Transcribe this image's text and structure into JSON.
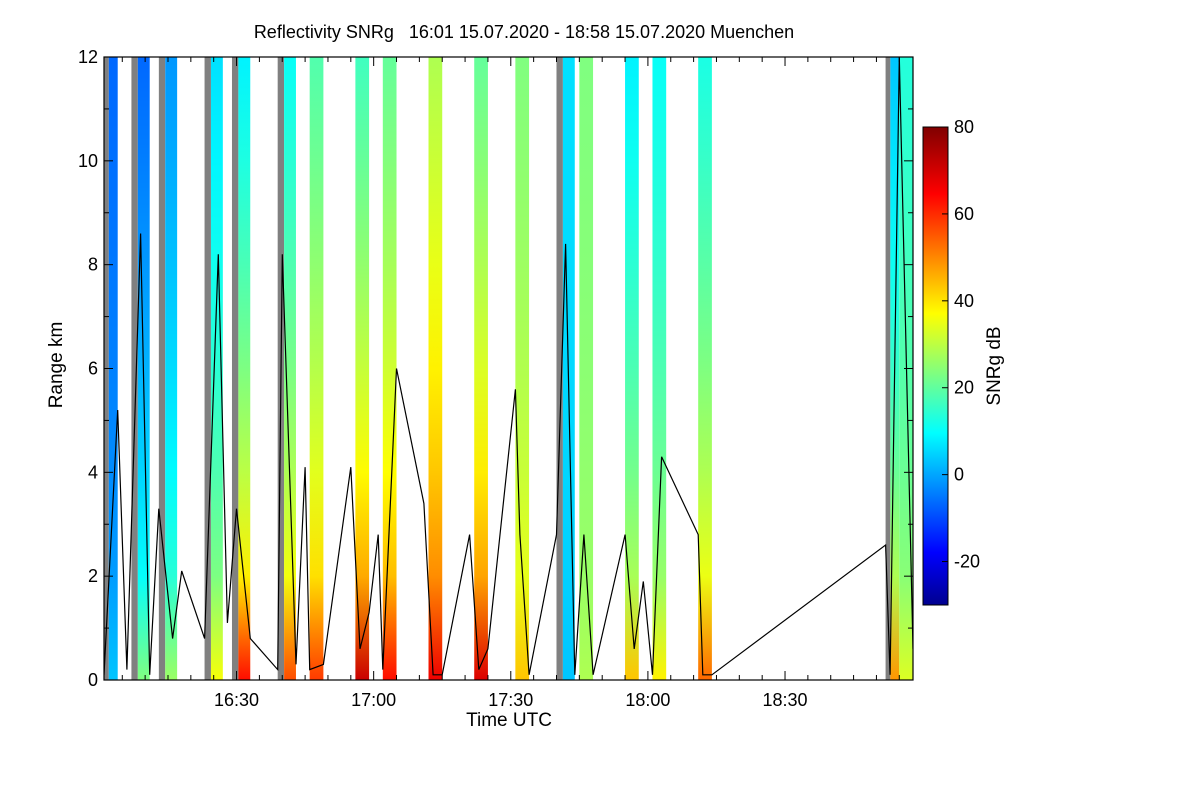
{
  "chart_data": {
    "type": "heatmap",
    "title": "Reflectivity SNRg   16:01 15.07.2020 - 18:58 15.07.2020 Muenchen",
    "xlabel": "Time UTC",
    "ylabel": "Range km",
    "xlim": [
      "16:01",
      "18:58"
    ],
    "ylim": [
      0,
      12
    ],
    "x_ticks": [
      "16:30",
      "17:00",
      "17:30",
      "18:00",
      "18:30"
    ],
    "y_ticks": [
      0,
      2,
      4,
      6,
      8,
      10,
      12
    ],
    "colorbar": {
      "label": "SNRg dB",
      "range": [
        -30,
        80
      ],
      "ticks": [
        -20,
        0,
        20,
        40,
        60,
        80
      ],
      "colormap": "jet",
      "colors": [
        "#00008f",
        "#0000ff",
        "#00ffff",
        "#ffff00",
        "#ff0000",
        "#800000"
      ]
    },
    "gap_color": "#808080",
    "profiles": [
      {
        "start": "16:01",
        "end": "16:04",
        "surface_snr_db": 5,
        "top_snr_db": -5,
        "gap_top_km": 12
      },
      {
        "start": "16:07",
        "end": "16:11",
        "surface_snr_db": 25,
        "top_snr_db": -5,
        "gap_top_km": 12
      },
      {
        "start": "16:13",
        "end": "16:17",
        "surface_snr_db": 28,
        "top_snr_db": 0,
        "gap_top_km": 12
      },
      {
        "start": "16:23",
        "end": "16:27",
        "surface_snr_db": 38,
        "top_snr_db": 8,
        "gap_top_km": 12
      },
      {
        "start": "16:29",
        "end": "16:33",
        "surface_snr_db": 65,
        "top_snr_db": 10,
        "gap_top_km": 12
      },
      {
        "start": "16:39",
        "end": "16:43",
        "surface_snr_db": 58,
        "top_snr_db": 12,
        "gap_top_km": 12
      },
      {
        "start": "16:46",
        "end": "16:49",
        "surface_snr_db": 60,
        "top_snr_db": 20,
        "gap_top_km": 0
      },
      {
        "start": "16:56",
        "end": "16:59",
        "surface_snr_db": 72,
        "top_snr_db": 18,
        "gap_top_km": 0
      },
      {
        "start": "17:02",
        "end": "17:05",
        "surface_snr_db": 65,
        "top_snr_db": 22,
        "gap_top_km": 0
      },
      {
        "start": "17:12",
        "end": "17:15",
        "surface_snr_db": 68,
        "top_snr_db": 30,
        "gap_top_km": 0
      },
      {
        "start": "17:22",
        "end": "17:25",
        "surface_snr_db": 70,
        "top_snr_db": 22,
        "gap_top_km": 0
      },
      {
        "start": "17:31",
        "end": "17:34",
        "surface_snr_db": 45,
        "top_snr_db": 25,
        "gap_top_km": 0
      },
      {
        "start": "17:40",
        "end": "17:44",
        "surface_snr_db": 5,
        "top_snr_db": 8,
        "gap_top_km": 12
      },
      {
        "start": "17:45",
        "end": "17:48",
        "surface_snr_db": 30,
        "top_snr_db": 25,
        "gap_top_km": 0
      },
      {
        "start": "17:55",
        "end": "17:58",
        "surface_snr_db": 45,
        "top_snr_db": 10,
        "gap_top_km": 0
      },
      {
        "start": "18:01",
        "end": "18:04",
        "surface_snr_db": 40,
        "top_snr_db": 12,
        "gap_top_km": 0
      },
      {
        "start": "18:11",
        "end": "18:14",
        "surface_snr_db": 55,
        "top_snr_db": 14,
        "gap_top_km": 0
      },
      {
        "start": "18:52",
        "end": "18:55",
        "surface_snr_db": 50,
        "top_snr_db": 5,
        "gap_top_km": 12
      },
      {
        "start": "18:55",
        "end": "18:58",
        "surface_snr_db": 35,
        "top_snr_db": 15,
        "gap_top_km": 0
      }
    ],
    "elevation_line": {
      "color": "#000000",
      "x": [
        "16:01",
        "16:04",
        "16:06",
        "16:09",
        "16:11",
        "16:13",
        "16:16",
        "16:18",
        "16:23",
        "16:26",
        "16:28",
        "16:30",
        "16:33",
        "16:39",
        "16:40",
        "16:43",
        "16:45",
        "16:46",
        "16:49",
        "16:55",
        "16:57",
        "16:59",
        "17:01",
        "17:02",
        "17:05",
        "17:11",
        "17:13",
        "17:15",
        "17:21",
        "17:23",
        "17:25",
        "17:31",
        "17:32",
        "17:34",
        "17:40",
        "17:42",
        "17:44",
        "17:46",
        "17:48",
        "17:55",
        "17:57",
        "17:59",
        "18:01",
        "18:03",
        "18:11",
        "18:12",
        "18:14",
        "18:52",
        "18:53",
        "18:55",
        "18:58"
      ],
      "y": [
        0.1,
        5.2,
        0.2,
        8.6,
        0.1,
        3.3,
        0.8,
        2.1,
        0.8,
        8.2,
        1.1,
        3.3,
        0.8,
        0.2,
        8.2,
        0.3,
        4.1,
        0.2,
        0.3,
        4.1,
        0.6,
        1.3,
        2.8,
        0.2,
        6.0,
        3.4,
        0.1,
        0.1,
        2.8,
        0.2,
        0.6,
        5.6,
        2.8,
        0.1,
        2.8,
        8.4,
        0.1,
        2.8,
        0.1,
        2.8,
        0.6,
        1.9,
        0.1,
        4.3,
        2.8,
        0.1,
        0.1,
        2.6,
        0.1,
        12.0,
        0.6
      ]
    }
  }
}
